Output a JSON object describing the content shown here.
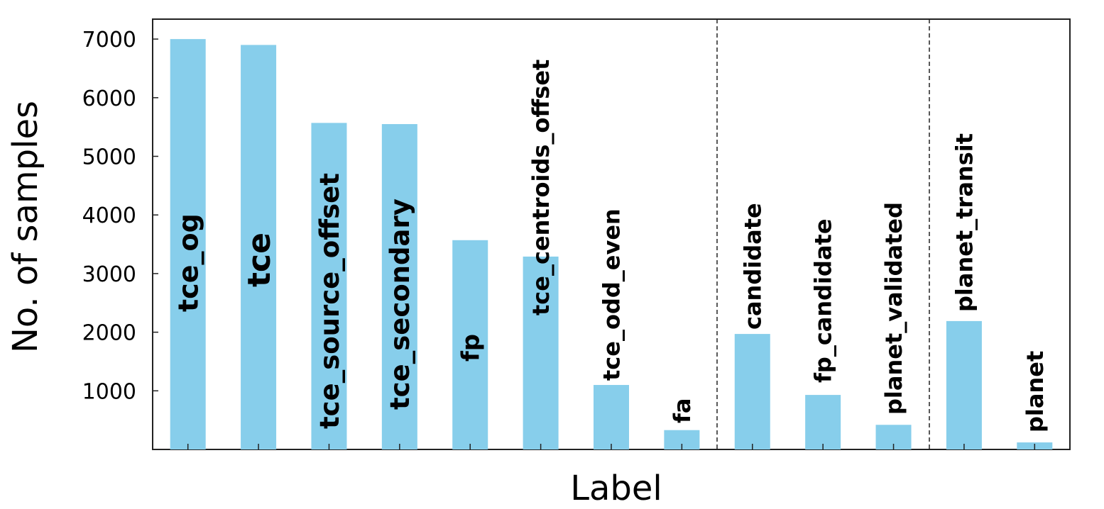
{
  "chart_data": {
    "type": "bar",
    "xlabel": "Label",
    "ylabel": "No. of samples",
    "categories": [
      "tce_og",
      "tce",
      "tce_source_offset",
      "tce_secondary",
      "fp",
      "tce_centroids_offset",
      "tce_odd_even",
      "fa",
      "candidate",
      "fp_candidate",
      "planet_validated",
      "planet_transit",
      "planet"
    ],
    "values": [
      7000,
      6900,
      5570,
      5550,
      3570,
      3290,
      1100,
      330,
      1970,
      930,
      420,
      2190,
      120
    ],
    "color": "#87ceeb",
    "ylim": [
      0,
      7340
    ],
    "yticks": [
      1000,
      2000,
      3000,
      4000,
      5000,
      6000,
      7000
    ],
    "grid": false
  }
}
